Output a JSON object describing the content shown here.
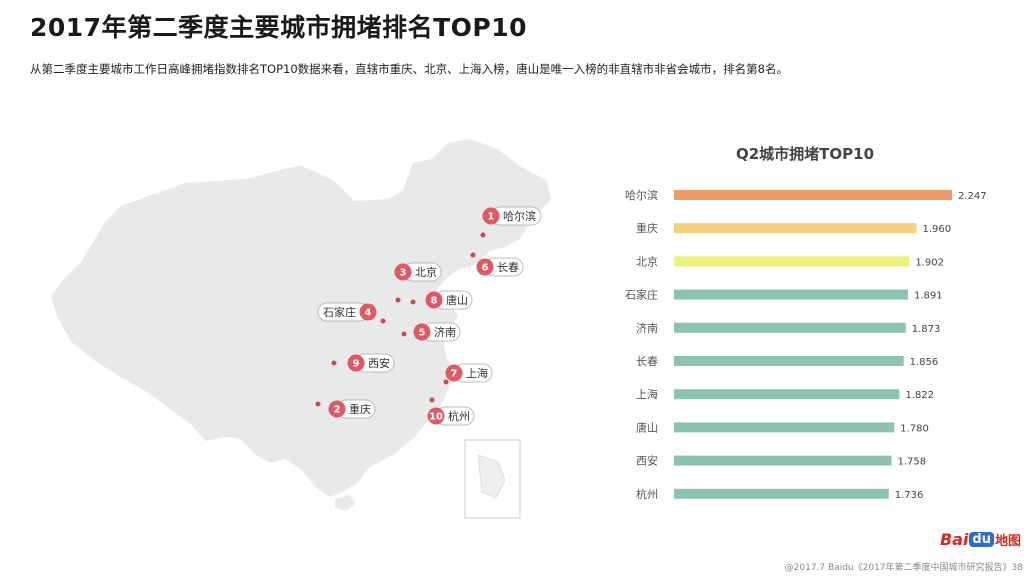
{
  "header": {
    "title": "2017年第二季度主要城市拥堵排名TOP10",
    "subtitle": "从第二季度主要城市工作日高峰拥堵指数排名TOP10数据来看，直辖市重庆、北京、上海入榜，唐山是唯一入榜的非直辖市非省会城市，排名第8名。"
  },
  "map": {
    "markers": [
      {
        "rank": "1",
        "city": "哈尔滨"
      },
      {
        "rank": "2",
        "city": "重庆"
      },
      {
        "rank": "3",
        "city": "北京"
      },
      {
        "rank": "4",
        "city": "石家庄"
      },
      {
        "rank": "5",
        "city": "济南"
      },
      {
        "rank": "6",
        "city": "长春"
      },
      {
        "rank": "7",
        "city": "上海"
      },
      {
        "rank": "8",
        "city": "唐山"
      },
      {
        "rank": "9",
        "city": "西安"
      },
      {
        "rank": "10",
        "city": "杭州"
      }
    ]
  },
  "chart_data": {
    "type": "bar",
    "title": "Q2城市拥堵TOP10",
    "orientation": "horizontal",
    "categories": [
      "哈尔滨",
      "重庆",
      "北京",
      "石家庄",
      "济南",
      "长春",
      "上海",
      "唐山",
      "西安",
      "杭州"
    ],
    "values": [
      2.247,
      1.96,
      1.902,
      1.891,
      1.873,
      1.856,
      1.822,
      1.78,
      1.758,
      1.736
    ],
    "value_labels": [
      "2.247",
      "1.960",
      "1.902",
      "1.891",
      "1.873",
      "1.856",
      "1.822",
      "1.780",
      "1.758",
      "1.736"
    ],
    "colors": [
      "#ef9a6a",
      "#f1d27a",
      "#eaf07a",
      "#8cc3ae",
      "#8cc3ae",
      "#8cc3ae",
      "#8cc3ae",
      "#8cc3ae",
      "#8cc3ae",
      "#8cc3ae"
    ],
    "xlim": [
      0,
      2.247
    ],
    "grid": false,
    "legend": "none"
  },
  "footer": {
    "source": "@2017.7 Baidu《2017年第二季度中国城市研究报告》38"
  },
  "logo": {
    "bai": "Bai",
    "du": "du",
    "ditu": "地图"
  }
}
